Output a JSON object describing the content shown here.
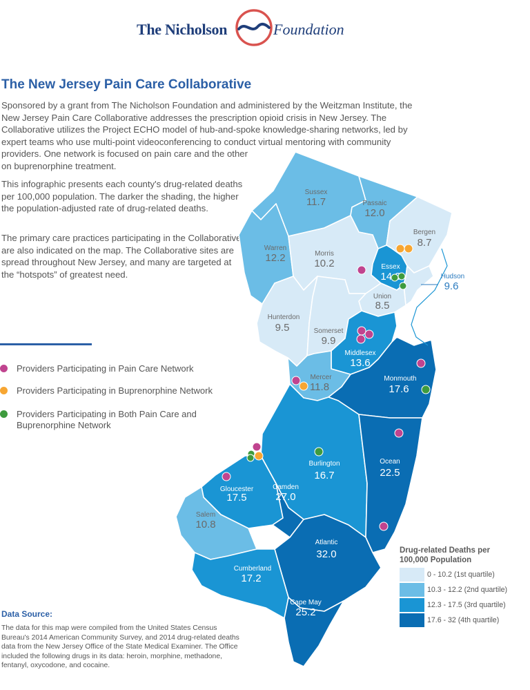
{
  "logo": {
    "left": "The Nicholson",
    "right": "Foundation"
  },
  "title": "The New Jersey Pain Care Collaborative",
  "intro_lines": [
    "Sponsored by a grant from The Nicholson Foundation and administered by the Weitzman Institute, the",
    "New Jersey Pain Care Collaborative addresses the prescription opioid crisis in New Jersey. The",
    "Collaborative utilizes the Project  ECHO model of hub-and-spoke knowledge-sharing networks, led by",
    "expert teams who use multi-point videoconferencing to conduct virtual mentoring with community",
    "providers. One network is focused on pain care and the other",
    "on buprenorphine treatment."
  ],
  "para2": "This infographic presents each county's drug-related deaths per 100,000 population. The darker the shading, the higher the population-adjusted rate of drug-related deaths.",
  "para3": "The primary care practices participating in the Collaborative are also indicated on the map. The Collaborative sites are spread throughout New Jersey, and many are targeted at the “hotspots” of greatest need.",
  "legend": [
    {
      "label": "Providers Participating in Pain Care Network",
      "color": "#c0448f"
    },
    {
      "label": "Providers Participating in Buprenorphine Network",
      "color": "#f7a632"
    },
    {
      "label": "Providers Participating in Both Pain Care and Buprenorphine Network",
      "color": "#3e9b3e"
    }
  ],
  "scale": {
    "title": "Drug-related Deaths per 100,000 Population",
    "items": [
      {
        "label": "0 - 10.2 (1st quartile)",
        "color": "#d7eaf7"
      },
      {
        "label": "10.3 - 12.2 (2nd quartile)",
        "color": "#6bbde6"
      },
      {
        "label": "12.3 - 17.5 (3rd quartile)",
        "color": "#1a95d4"
      },
      {
        "label": "17.6 - 32 (4th quartile)",
        "color": "#0a6db3"
      }
    ]
  },
  "counties": [
    {
      "name": "Sussex",
      "value": "11.7"
    },
    {
      "name": "Passaic",
      "value": "12.0"
    },
    {
      "name": "Bergen",
      "value": "8.7"
    },
    {
      "name": "Warren",
      "value": "12.2"
    },
    {
      "name": "Morris",
      "value": "10.2"
    },
    {
      "name": "Essex",
      "value": "14.3"
    },
    {
      "name": "Hudson",
      "value": "9.6"
    },
    {
      "name": "Union",
      "value": "8.5"
    },
    {
      "name": "Hunterdon",
      "value": "9.5"
    },
    {
      "name": "Somerset",
      "value": "9.9"
    },
    {
      "name": "Middlesex",
      "value": "13.6"
    },
    {
      "name": "Mercer",
      "value": "11.8"
    },
    {
      "name": "Monmouth",
      "value": "17.6"
    },
    {
      "name": "Burlington",
      "value": "16.7"
    },
    {
      "name": "Ocean",
      "value": "22.5"
    },
    {
      "name": "Gloucester",
      "value": "17.5"
    },
    {
      "name": "Camden",
      "value": "27.0"
    },
    {
      "name": "Salem",
      "value": "10.8"
    },
    {
      "name": "Atlantic",
      "value": "32.0"
    },
    {
      "name": "Cumberland",
      "value": "17.2"
    },
    {
      "name": "Cape May",
      "value": "25.2"
    }
  ],
  "data_source": {
    "heading": "Data Source:",
    "text": "The data for this map were compiled from the United States Census Bureau's 2014 American Community Survey, and 2014 drug-related deaths data from the New Jersey Office of the State Medical Examiner. The Office included the following drugs in its data: heroin, morphine, methadone, fentanyl, oxycodone, and cocaine."
  }
}
